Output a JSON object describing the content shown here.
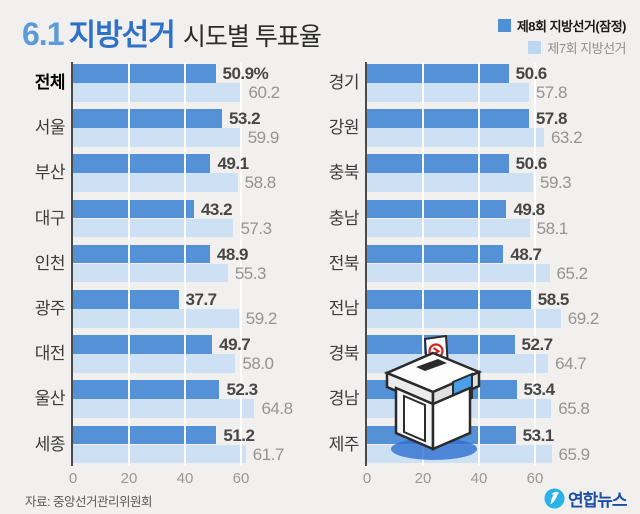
{
  "title": {
    "prefix": "6.1",
    "main": "지방선거",
    "suffix": "시도별 투표율"
  },
  "legend": [
    {
      "label": "제8회 지방선거(잠정)",
      "color": "#4e8fd6"
    },
    {
      "label": "제7회 지방선거",
      "color": "#bdd7f1"
    }
  ],
  "colors": {
    "background": "#f1f0ee",
    "bar_8th": "#5591d7",
    "bar_7th": "#cde0f4",
    "axis": "#4a4a4a",
    "title_prefix": "#5b9bd8",
    "title_main": "#2e71c9",
    "value_8th_text": "#474747",
    "value_7th_text": "#949494",
    "logo_blue": "#1b4fa5",
    "logo_cyan": "#2ab3e6"
  },
  "chart_data": {
    "type": "bar",
    "orientation": "horizontal",
    "title": "6.1 지방선거 시도별 투표율",
    "series": [
      "제8회 지방선거(잠정)",
      "제7회 지방선거"
    ],
    "x_ticks": [
      0,
      20,
      40,
      60
    ],
    "xlim": [
      0,
      75
    ],
    "grid": true,
    "legend_position": "top-right",
    "panels": [
      {
        "rows": [
          {
            "label": "전체",
            "bold": true,
            "v8": 50.9,
            "v8_text": "50.9%",
            "v7": 60.2,
            "v7_text": "60.2"
          },
          {
            "label": "서울",
            "v8": 53.2,
            "v8_text": "53.2",
            "v7": 59.9,
            "v7_text": "59.9"
          },
          {
            "label": "부산",
            "v8": 49.1,
            "v8_text": "49.1",
            "v7": 58.8,
            "v7_text": "58.8"
          },
          {
            "label": "대구",
            "v8": 43.2,
            "v8_text": "43.2",
            "v7": 57.3,
            "v7_text": "57.3"
          },
          {
            "label": "인천",
            "v8": 48.9,
            "v8_text": "48.9",
            "v7": 55.3,
            "v7_text": "55.3"
          },
          {
            "label": "광주",
            "v8": 37.7,
            "v8_text": "37.7",
            "v7": 59.2,
            "v7_text": "59.2"
          },
          {
            "label": "대전",
            "v8": 49.7,
            "v8_text": "49.7",
            "v7": 58.0,
            "v7_text": "58.0"
          },
          {
            "label": "울산",
            "v8": 52.3,
            "v8_text": "52.3",
            "v7": 64.8,
            "v7_text": "64.8"
          },
          {
            "label": "세종",
            "v8": 51.2,
            "v8_text": "51.2",
            "v7": 61.7,
            "v7_text": "61.7"
          }
        ]
      },
      {
        "rows": [
          {
            "label": "경기",
            "v8": 50.6,
            "v8_text": "50.6",
            "v7": 57.8,
            "v7_text": "57.8"
          },
          {
            "label": "강원",
            "v8": 57.8,
            "v8_text": "57.8",
            "v7": 63.2,
            "v7_text": "63.2"
          },
          {
            "label": "충북",
            "v8": 50.6,
            "v8_text": "50.6",
            "v7": 59.3,
            "v7_text": "59.3"
          },
          {
            "label": "충남",
            "v8": 49.8,
            "v8_text": "49.8",
            "v7": 58.1,
            "v7_text": "58.1"
          },
          {
            "label": "전북",
            "v8": 48.7,
            "v8_text": "48.7",
            "v7": 65.2,
            "v7_text": "65.2"
          },
          {
            "label": "전남",
            "v8": 58.5,
            "v8_text": "58.5",
            "v7": 69.2,
            "v7_text": "69.2"
          },
          {
            "label": "경북",
            "v8": 52.7,
            "v8_text": "52.7",
            "v7": 64.7,
            "v7_text": "64.7"
          },
          {
            "label": "경남",
            "v8": 53.4,
            "v8_text": "53.4",
            "v7": 65.8,
            "v7_text": "65.8"
          },
          {
            "label": "제주",
            "v8": 53.1,
            "v8_text": "53.1",
            "v7": 65.9,
            "v7_text": "65.9"
          }
        ]
      }
    ]
  },
  "footer": {
    "source": "자료: 중앙선거관리위원회",
    "logo_text": "연합뉴스"
  }
}
